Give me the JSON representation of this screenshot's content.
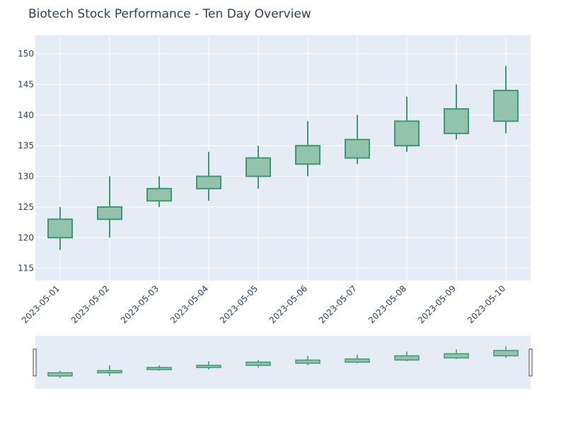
{
  "chart_data": {
    "type": "candlestick",
    "title": "Biotech Stock Performance - Ten Day Overview",
    "xlabel": "",
    "ylabel": "",
    "x": [
      "2023-05-01",
      "2023-05-02",
      "2023-05-03",
      "2023-05-04",
      "2023-05-05",
      "2023-05-06",
      "2023-05-07",
      "2023-05-08",
      "2023-05-09",
      "2023-05-10"
    ],
    "open": [
      120,
      123,
      126,
      128,
      130,
      132,
      133,
      135,
      137,
      139
    ],
    "high": [
      125,
      130,
      130,
      134,
      135,
      139,
      140,
      143,
      145,
      148
    ],
    "low": [
      118,
      120,
      125,
      126,
      128,
      130,
      132,
      134,
      136,
      137
    ],
    "close": [
      123,
      125,
      128,
      130,
      133,
      135,
      136,
      139,
      141,
      144
    ],
    "ylim": [
      113,
      153
    ],
    "yticks": [
      115,
      120,
      125,
      130,
      135,
      140,
      145,
      150
    ],
    "grid": true,
    "rangeslider": true,
    "colors": {
      "increasing_line": "#3d9970",
      "increasing_fill": "#93c3ac",
      "plot_bg": "#e5ecf6",
      "text": "#2a3f5f"
    }
  }
}
